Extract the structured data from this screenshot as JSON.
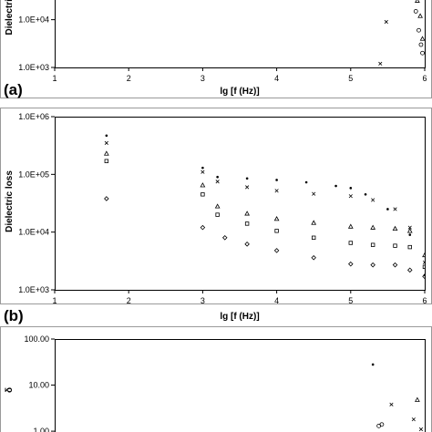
{
  "chart_data": [
    {
      "panel_label": "(a)",
      "type": "scatter",
      "xlabel": "lg [f (Hz)]",
      "ylabel": "Dielectric",
      "xlim": [
        1,
        6
      ],
      "ylim": [
        1000,
        150000
      ],
      "yscale": "log",
      "x_ticks": [
        1,
        2,
        3,
        4,
        5,
        6
      ],
      "x_tick_labels": [
        "1",
        "2",
        "3",
        "4",
        "5",
        "6"
      ],
      "y_ticks": [
        1000,
        10000
      ],
      "y_tick_labels": [
        "1.0E+03",
        "1.0E+04"
      ],
      "grid": false,
      "series": [
        {
          "marker": "dot",
          "x": [
            5.45,
            5.52,
            5.6,
            5.68,
            5.75,
            5.82,
            5.88,
            5.92
          ],
          "y": [
            95000,
            80000,
            70000,
            65000,
            62000,
            75000,
            90000,
            110000
          ]
        },
        {
          "marker": "circle",
          "x": [
            5.55,
            5.62,
            5.7,
            5.78,
            5.84,
            5.88,
            5.92,
            5.95,
            5.97
          ],
          "y": [
            100000,
            88000,
            78000,
            60000,
            35000,
            15000,
            6000,
            3000,
            2000
          ]
        },
        {
          "marker": "cross",
          "x": [
            5.4,
            5.48,
            5.55,
            5.62,
            5.68
          ],
          "y": [
            1200,
            9000,
            30000,
            60000,
            90000
          ]
        },
        {
          "marker": "triangle",
          "x": [
            5.86,
            5.9,
            5.94,
            5.97
          ],
          "y": [
            40000,
            25000,
            12000,
            4000
          ]
        }
      ]
    },
    {
      "panel_label": "(b)",
      "type": "scatter",
      "xlabel": "lg [f (Hz)]",
      "ylabel": "Dielectric loss",
      "xlim": [
        1,
        6
      ],
      "ylim": [
        1000,
        1000000
      ],
      "yscale": "log",
      "x_ticks": [
        1,
        2,
        3,
        4,
        5,
        6
      ],
      "x_tick_labels": [
        "1",
        "2",
        "3",
        "4",
        "5",
        "6"
      ],
      "y_ticks": [
        1000,
        10000,
        100000,
        1000000
      ],
      "y_tick_labels": [
        "1.0E+03",
        "1.0E+04",
        "1.0E+05",
        "1.0E+06"
      ],
      "grid": false,
      "series": [
        {
          "marker": "dot",
          "x": [
            1.7,
            3.0,
            3.2,
            3.6,
            4.0,
            4.4,
            4.8,
            5.0,
            5.2,
            5.5,
            5.8,
            6.0
          ],
          "y": [
            470000,
            130000,
            90000,
            85000,
            80000,
            73000,
            63000,
            58000,
            45000,
            25000,
            9000,
            1800
          ]
        },
        {
          "marker": "cross",
          "x": [
            1.7,
            3.0,
            3.2,
            3.6,
            4.0,
            4.5,
            5.0,
            5.3,
            5.6,
            5.8,
            6.0
          ],
          "y": [
            350000,
            110000,
            75000,
            60000,
            52000,
            46000,
            42000,
            36000,
            25000,
            12000,
            3000
          ]
        },
        {
          "marker": "triangle",
          "x": [
            1.7,
            3.0,
            3.2,
            3.6,
            4.0,
            4.5,
            5.0,
            5.3,
            5.6,
            5.8,
            6.0
          ],
          "y": [
            230000,
            65000,
            28000,
            21000,
            17000,
            14500,
            12500,
            12000,
            11500,
            10500,
            4000
          ]
        },
        {
          "marker": "square",
          "x": [
            1.7,
            3.0,
            3.2,
            3.6,
            4.0,
            4.5,
            5.0,
            5.3,
            5.6,
            5.8,
            6.0
          ],
          "y": [
            170000,
            45000,
            20000,
            14000,
            10500,
            8000,
            6500,
            6000,
            5800,
            5500,
            2500
          ]
        },
        {
          "marker": "diamond",
          "x": [
            1.7,
            3.0,
            3.3,
            3.6,
            4.0,
            4.5,
            5.0,
            5.3,
            5.6,
            5.8,
            6.0
          ],
          "y": [
            38000,
            12000,
            8000,
            6200,
            4800,
            3600,
            2800,
            2700,
            2700,
            2200,
            1700
          ]
        }
      ]
    },
    {
      "panel_label": "",
      "type": "scatter",
      "xlabel": "",
      "ylabel": "δ",
      "xlim": [
        1,
        6
      ],
      "ylim": [
        0.8,
        100
      ],
      "yscale": "log",
      "x_ticks": [],
      "x_tick_labels": [],
      "y_ticks": [
        1,
        10,
        100
      ],
      "y_tick_labels": [
        "1.00",
        "10.00",
        "100.00"
      ],
      "grid": false,
      "series": [
        {
          "marker": "dot",
          "x": [
            5.3
          ],
          "y": [
            28
          ]
        },
        {
          "marker": "circle",
          "x": [
            5.38,
            5.42
          ],
          "y": [
            1.3,
            1.4
          ]
        },
        {
          "marker": "cross",
          "x": [
            5.55
          ],
          "y": [
            3.8
          ]
        },
        {
          "marker": "triangle",
          "x": [
            5.9
          ],
          "y": [
            4.8
          ]
        },
        {
          "marker": "cross",
          "x": [
            5.85,
            5.95
          ],
          "y": [
            1.8,
            1.1
          ]
        }
      ]
    }
  ]
}
